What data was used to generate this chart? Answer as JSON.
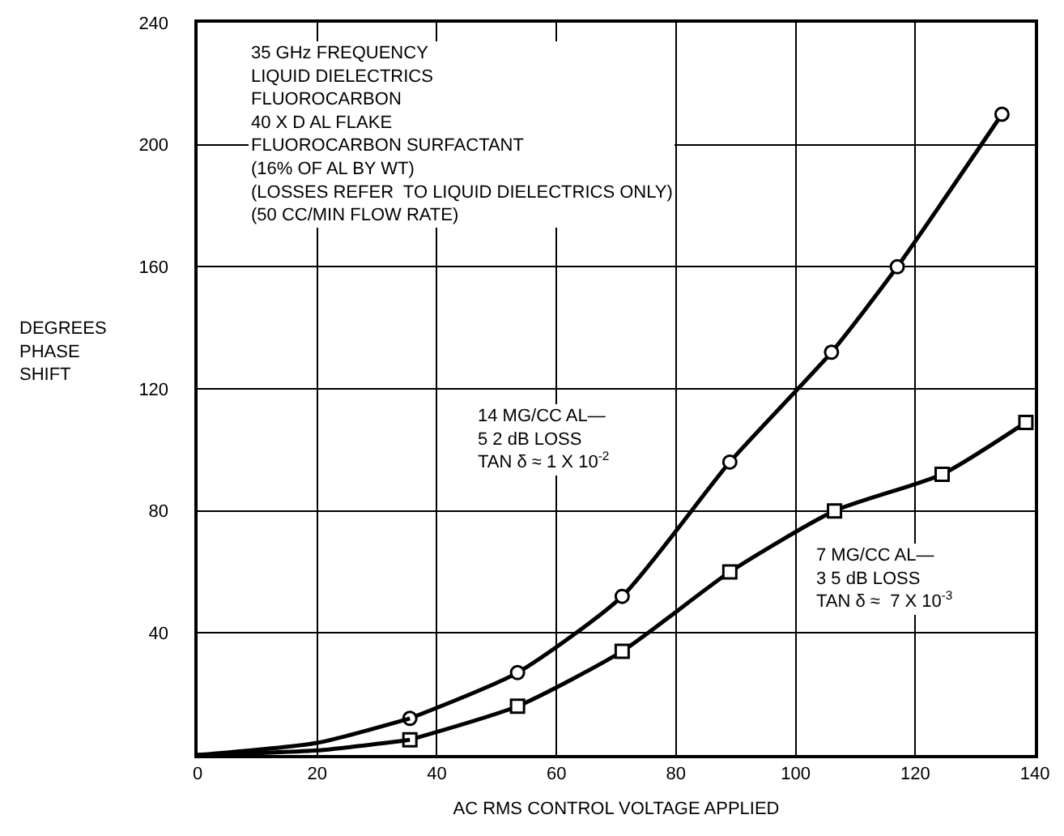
{
  "chart_data": {
    "type": "line",
    "xlabel": "AC RMS CONTROL VOLTAGE APPLIED",
    "ylabel": "DEGREES\nPHASE\nSHIFT",
    "xlim": [
      0,
      140
    ],
    "xticks": [
      0,
      20,
      40,
      60,
      80,
      100,
      120,
      140
    ],
    "ylim": [
      0,
      240
    ],
    "yticks": [
      40,
      80,
      120,
      160,
      200,
      240
    ],
    "grid": true,
    "line_style": "solid",
    "series": [
      {
        "color": "#000000",
        "marker": "circle",
        "x": [
          35.5,
          53.5,
          71,
          89,
          106,
          117,
          134.5
        ],
        "values": [
          12,
          27,
          52,
          96,
          132,
          160,
          210
        ]
      },
      {
        "color": "#000000",
        "marker": "square",
        "x": [
          35.5,
          53.5,
          71,
          89,
          106.5,
          124.5,
          138.5
        ],
        "values": [
          5,
          16,
          34,
          60,
          80,
          92,
          109
        ]
      },
      {
        "color": "#000000",
        "marker": "none",
        "x": [
          0,
          20,
          35.5
        ],
        "values": [
          0,
          4,
          12
        ]
      },
      {
        "color": "#000000",
        "marker": "none",
        "x": [
          0,
          20,
          35.5
        ],
        "values": [
          0,
          1.5,
          5
        ]
      }
    ],
    "annotations": [
      "35 GHz FREQUENCY\nLIQUID DIELECTRICS\nFLUOROCARBON\n40 X D AL FLAKE\nFLUOROCARBON SURFACTANT\n(16% OF AL BY WT)\n(LOSSES REFER  TO LIQUID DIELECTRICS ONLY)\n(50 CC/MIN FLOW RATE)",
      "14 MG/CC AL—\n5 2 dB LOSS\nTAN δ ≈ 1 X 10$^{-2}$",
      "7 MG/CC AL—\n3 5 dB LOSS\nTAN δ ≈  7 X 10$^{-3}$"
    ]
  }
}
